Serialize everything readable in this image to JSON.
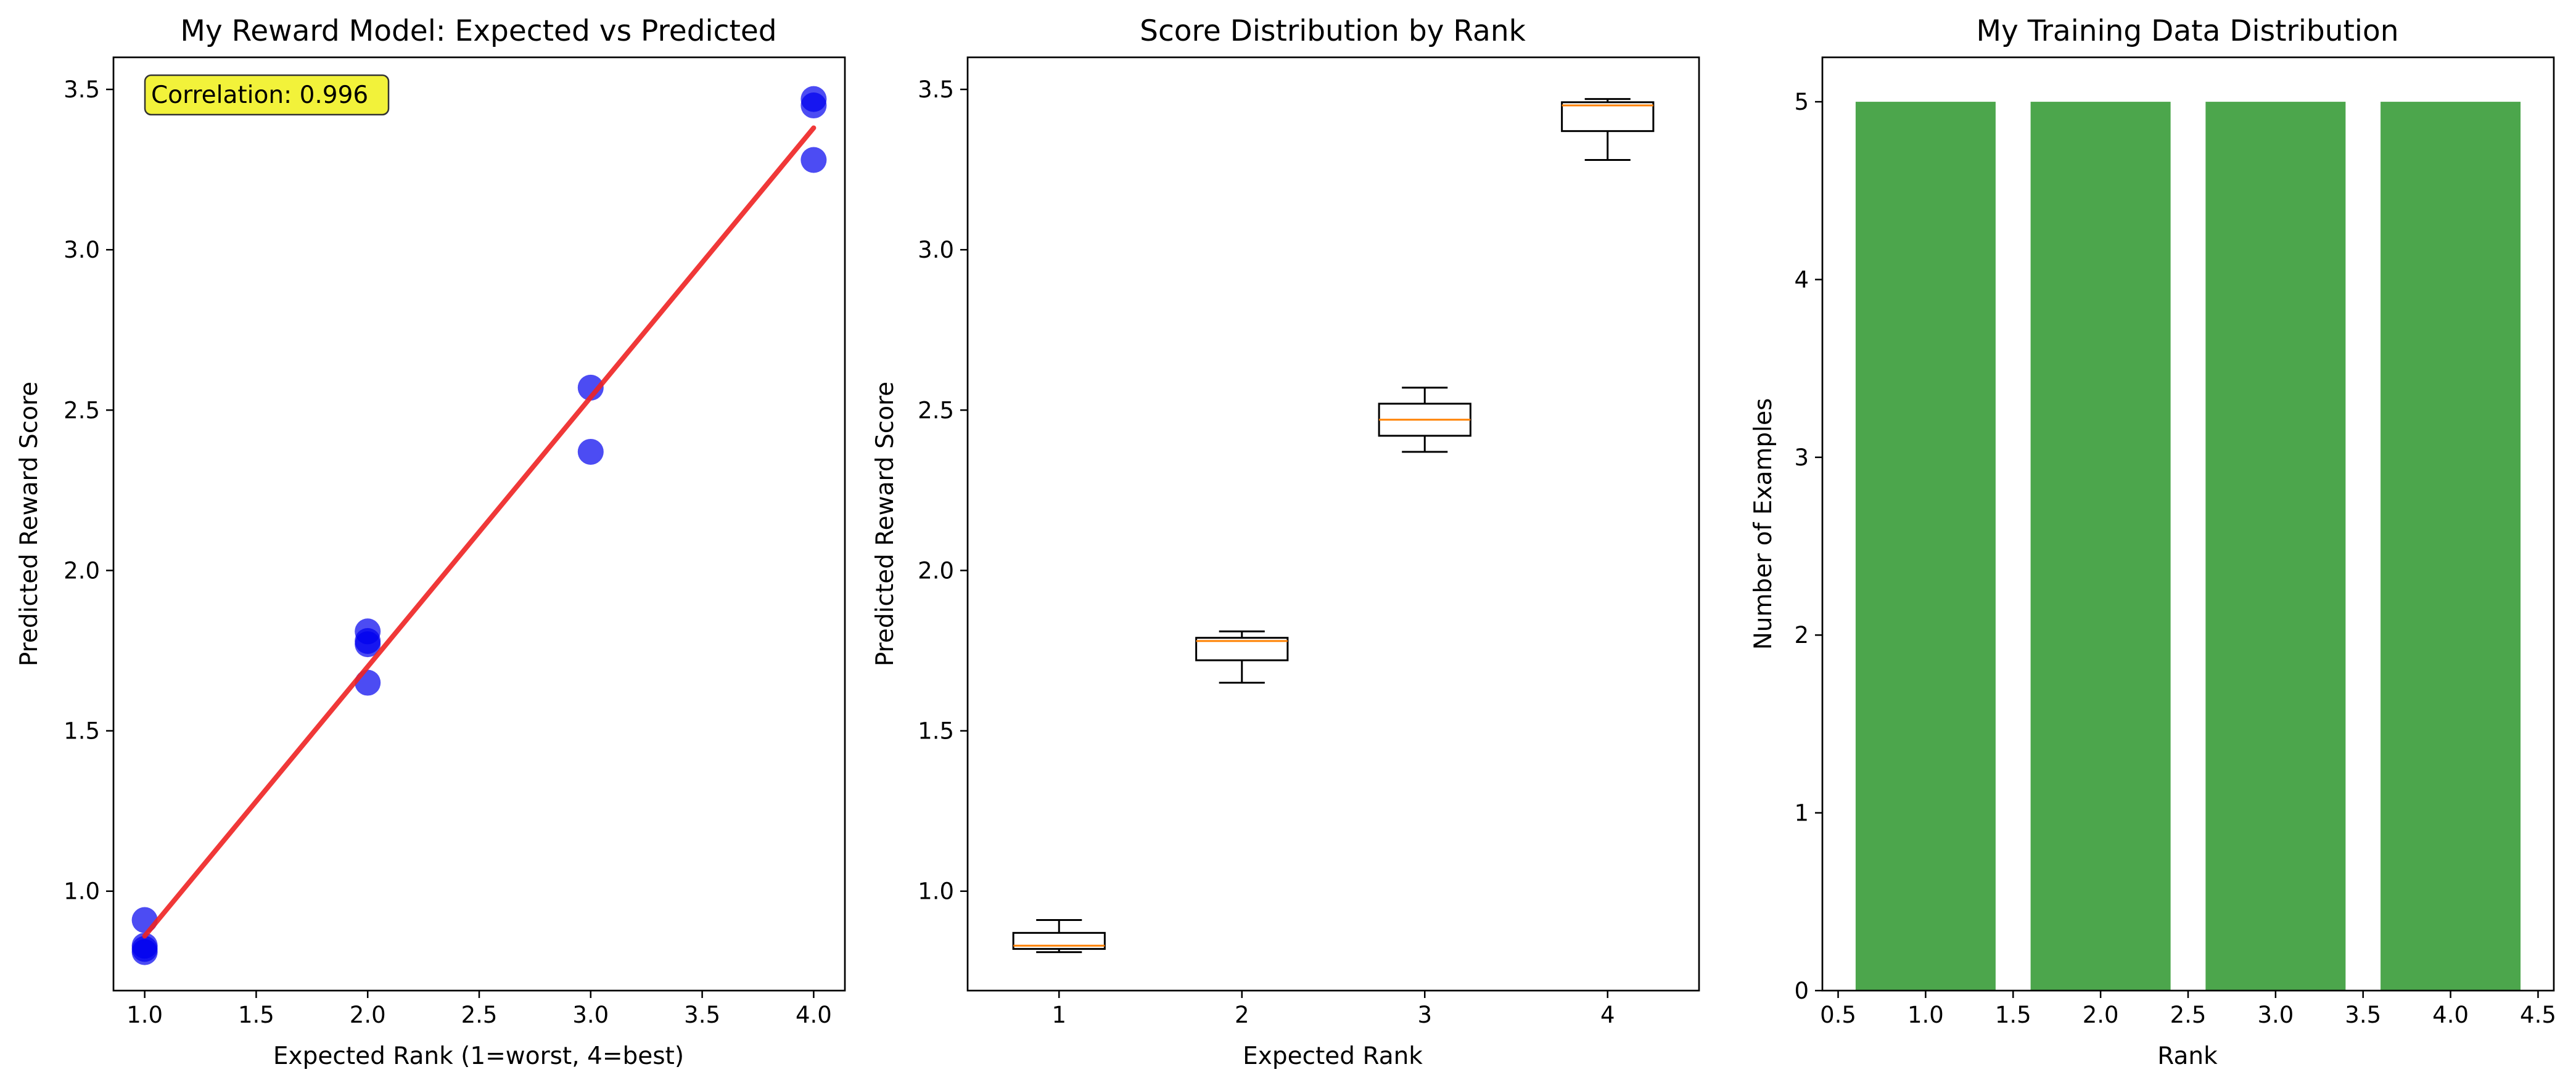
{
  "chart_data": [
    {
      "type": "scatter",
      "title": "My Reward Model: Expected vs Predicted",
      "xlabel": "Expected Rank (1=worst, 4=best)",
      "ylabel": "Predicted Reward Score",
      "xlim": [
        0.86,
        4.14
      ],
      "ylim": [
        0.69,
        3.6
      ],
      "xticks": [
        "1.0",
        "1.5",
        "2.0",
        "2.5",
        "3.0",
        "3.5",
        "4.0"
      ],
      "yticks": [
        "1.0",
        "1.5",
        "2.0",
        "2.5",
        "3.0",
        "3.5"
      ],
      "grid": false,
      "series": [
        {
          "kind": "points",
          "color": "#0000ee",
          "points": [
            {
              "x": 1,
              "y": 0.91
            },
            {
              "x": 1,
              "y": 0.83
            },
            {
              "x": 1,
              "y": 0.82
            },
            {
              "x": 1,
              "y": 0.81
            },
            {
              "x": 2,
              "y": 1.81
            },
            {
              "x": 2,
              "y": 1.78
            },
            {
              "x": 2,
              "y": 1.77
            },
            {
              "x": 2,
              "y": 1.65
            },
            {
              "x": 3,
              "y": 2.57
            },
            {
              "x": 3,
              "y": 2.37
            },
            {
              "x": 4,
              "y": 3.47
            },
            {
              "x": 4,
              "y": 3.45
            },
            {
              "x": 4,
              "y": 3.28
            }
          ]
        },
        {
          "kind": "fit-line",
          "color": "#ee2222",
          "points": [
            {
              "x": 1,
              "y": 0.86
            },
            {
              "x": 4,
              "y": 3.38
            }
          ]
        }
      ],
      "annotation": "Correlation: 0.996"
    },
    {
      "type": "box",
      "title": "Score Distribution by Rank",
      "xlabel": "Expected Rank",
      "ylabel": "Predicted Reward Score",
      "ylim": [
        0.69,
        3.6
      ],
      "yticks": [
        "1.0",
        "1.5",
        "2.0",
        "2.5",
        "3.0",
        "3.5"
      ],
      "categories": [
        "1",
        "2",
        "3",
        "4"
      ],
      "boxes": [
        {
          "min": 0.81,
          "q1": 0.82,
          "median": 0.83,
          "q3": 0.87,
          "max": 0.91
        },
        {
          "min": 1.65,
          "q1": 1.72,
          "median": 1.78,
          "q3": 1.79,
          "max": 1.81
        },
        {
          "min": 2.37,
          "q1": 2.42,
          "median": 2.47,
          "q3": 2.52,
          "max": 2.57
        },
        {
          "min": 3.28,
          "q1": 3.37,
          "median": 3.45,
          "q3": 3.46,
          "max": 3.47
        }
      ],
      "box_color": "#000000",
      "median_color": "#ff8000"
    },
    {
      "type": "bar",
      "title": "My Training Data Distribution",
      "xlabel": "Rank",
      "ylabel": "Number of Examples",
      "x": [
        1,
        2,
        3,
        4
      ],
      "values": [
        5,
        5,
        5,
        5
      ],
      "bar_width": 0.8,
      "xlim": [
        0.41,
        4.59
      ],
      "ylim": [
        0,
        5.25
      ],
      "xticks": [
        "0.5",
        "1.0",
        "1.5",
        "2.0",
        "2.5",
        "3.0",
        "3.5",
        "4.0",
        "4.5"
      ],
      "yticks": [
        "0",
        "1",
        "2",
        "3",
        "4",
        "5"
      ],
      "color": "#4ca64c"
    }
  ]
}
